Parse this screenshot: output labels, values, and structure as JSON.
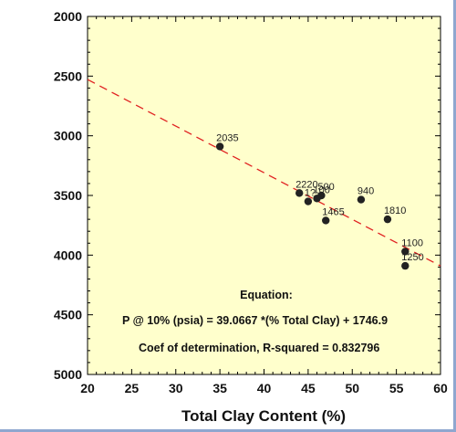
{
  "chart_data": {
    "type": "scatter",
    "title": "",
    "xlabel": "Total Clay Content (%)",
    "ylabel": "",
    "xlim": [
      20,
      60
    ],
    "ylim": [
      2000,
      5000
    ],
    "y_inverted": true,
    "x_ticks": [
      "20",
      "25",
      "30",
      "35",
      "40",
      "45",
      "50",
      "55",
      "60"
    ],
    "y_ticks": [
      "2000",
      "2500",
      "3000",
      "3500",
      "4000",
      "4500",
      "5000"
    ],
    "grid": false,
    "background": "#ffffcc",
    "series": [
      {
        "points": [
          {
            "x": 35,
            "y": 3090,
            "label": "2035"
          },
          {
            "x": 44,
            "y": 3480,
            "label": "2220"
          },
          {
            "x": 45,
            "y": 3550,
            "label": "1?"
          },
          {
            "x": 46,
            "y": 3525,
            "label": "100"
          },
          {
            "x": 46.5,
            "y": 3500,
            "label": "500"
          },
          {
            "x": 47,
            "y": 3710,
            "label": "1465"
          },
          {
            "x": 51,
            "y": 3535,
            "label": "940"
          },
          {
            "x": 54,
            "y": 3700,
            "label": "1810"
          },
          {
            "x": 56,
            "y": 3970,
            "label": "1100"
          },
          {
            "x": 56,
            "y": 4090,
            "label": "1250"
          }
        ],
        "marker_color": "#222222"
      }
    ],
    "trendline": {
      "slope": 39.0667,
      "intercept": 1746.9,
      "color": "#e02020",
      "style": "dashed"
    },
    "annotations": {
      "heading": "Equation:",
      "equation": "P @ 10% (psia) = 39.0667 *(% Total Clay) + 1746.9",
      "r_squared": "Coef of determination, R-squared = 0.832796"
    }
  }
}
